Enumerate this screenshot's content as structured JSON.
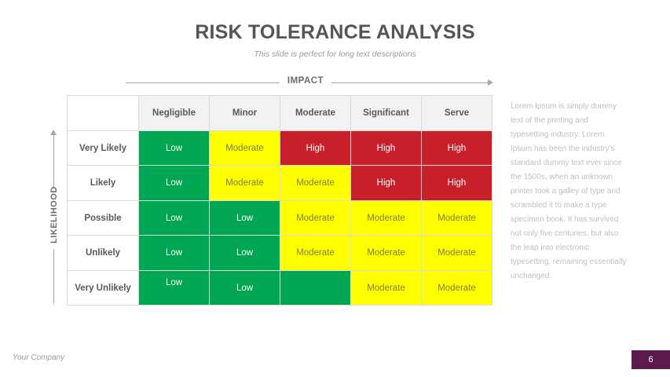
{
  "slide": {
    "title": "RISK TOLERANCE ANALYSIS",
    "subtitle": "This slide is perfect for long text descriptions"
  },
  "axes": {
    "impact_label": "IMPACT",
    "likelihood_label": "LIKELIHOOD"
  },
  "matrix": {
    "columns": [
      "Negligible",
      "Minor",
      "Moderate",
      "Significant",
      "Serve"
    ],
    "rows": [
      {
        "label": "Very  Likely",
        "cells": [
          "Low",
          "Moderate",
          "High",
          "High",
          "High"
        ]
      },
      {
        "label": "Likely",
        "cells": [
          "Low",
          "Moderate",
          "Moderate",
          "High",
          "High"
        ]
      },
      {
        "label": "Possible",
        "cells": [
          "Low",
          "Low",
          "Moderate",
          "Moderate",
          "Moderate"
        ]
      },
      {
        "label": "Unlikely",
        "cells": [
          "Low",
          "Low",
          "Moderate",
          "Moderate",
          "Moderate"
        ]
      },
      {
        "label": "Very  Unlikely",
        "cells": [
          "Low",
          "Low",
          "",
          "Moderate",
          "Moderate"
        ]
      }
    ],
    "colors": {
      "low": "#00a651",
      "moderate": "#ffff00",
      "high": "#c8202a"
    }
  },
  "description": "Lorem Ipsum is simply dummy text of the printing and typesetting industry. Lorem Ipsum has been the industry's standard dummy text ever since the 1500s, when an unknown printer took a galley of type and scrambled it to make a type specimen book. It has survived not only five centuries, but also the leap into electronic typesetting, remaining essentially unchanged.",
  "footer": {
    "company": "Your Company",
    "page_number": "6",
    "badge_color": "#5b1a4b"
  }
}
